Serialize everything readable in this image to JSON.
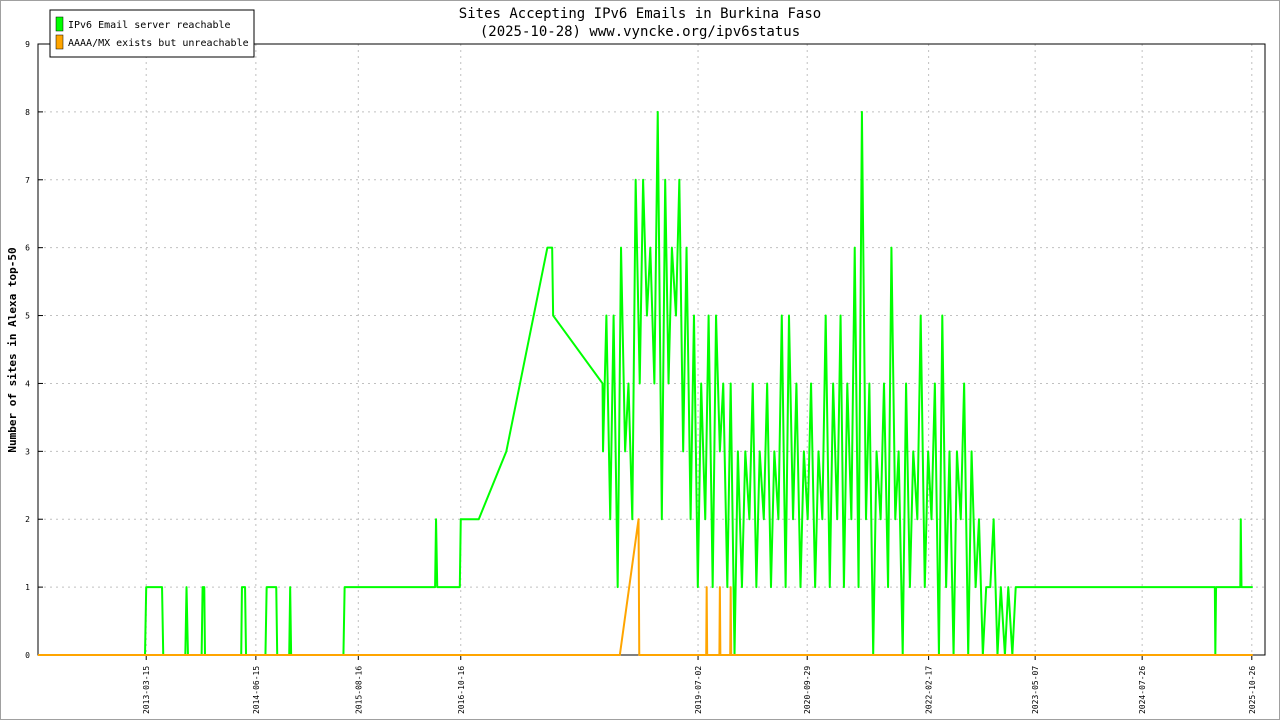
{
  "chart_data": {
    "type": "line",
    "title": "Sites Accepting IPv6 Emails in Burkina Faso",
    "subtitle": "(2025-10-28) www.vyncke.org/ipv6status",
    "y_label": "Number of sites in Alexa top-50",
    "xlim": [
      "2011-12-20",
      "2025-12-20"
    ],
    "xticks": [
      "2013-03-15",
      "2014-06-15",
      "2015-08-16",
      "2016-10-16",
      "2019-07-02",
      "2020-09-29",
      "2022-02-17",
      "2023-05-07",
      "2024-07-26",
      "2025-10-26"
    ],
    "ylim": [
      0,
      9
    ],
    "yticks": [
      0,
      1,
      2,
      3,
      4,
      5,
      6,
      7,
      8,
      9
    ],
    "grid": true,
    "legend": "top-left",
    "series": [
      {
        "name": "IPv6 Email server reachable",
        "color": "#00ff00",
        "x": [
          "2011-12-20",
          "2013-03-10",
          "2013-03-15",
          "2013-05-20",
          "2013-05-25",
          "2013-08-25",
          "2013-08-30",
          "2013-09-05",
          "2013-11-01",
          "2013-11-05",
          "2013-11-12",
          "2013-11-15",
          "2014-04-15",
          "2014-04-18",
          "2014-05-01",
          "2014-05-05",
          "2014-07-25",
          "2014-07-30",
          "2014-09-08",
          "2014-09-12",
          "2014-11-01",
          "2014-11-05",
          "2014-11-09",
          "2015-06-15",
          "2015-06-20",
          "2016-07-01",
          "2016-07-05",
          "2016-07-10",
          "2016-10-12",
          "2016-10-16",
          "2016-12-30",
          "2017-04-24",
          "2017-10-12",
          "2017-11-01",
          "2017-11-05",
          "2018-05-30",
          "2018-06-01",
          "2018-06-15",
          "2018-07-01",
          "2018-07-15",
          "2018-08-01",
          "2018-08-15",
          "2018-09-01",
          "2018-09-15",
          "2018-10-01",
          "2018-10-15",
          "2018-11-01",
          "2018-11-15",
          "2018-12-01",
          "2018-12-15",
          "2019-01-01",
          "2019-01-15",
          "2019-02-01",
          "2019-02-15",
          "2019-03-01",
          "2019-03-15",
          "2019-04-01",
          "2019-04-15",
          "2019-05-01",
          "2019-05-15",
          "2019-06-01",
          "2019-06-15",
          "2019-07-01",
          "2019-07-15",
          "2019-08-01",
          "2019-08-15",
          "2019-09-01",
          "2019-09-15",
          "2019-10-01",
          "2019-10-15",
          "2019-11-01",
          "2019-11-15",
          "2019-12-01",
          "2019-12-15",
          "2020-01-01",
          "2020-01-15",
          "2020-02-01",
          "2020-02-15",
          "2020-03-01",
          "2020-03-15",
          "2020-04-01",
          "2020-04-15",
          "2020-05-01",
          "2020-05-15",
          "2020-06-01",
          "2020-06-15",
          "2020-07-01",
          "2020-07-15",
          "2020-08-01",
          "2020-08-15",
          "2020-09-01",
          "2020-09-15",
          "2020-10-01",
          "2020-10-15",
          "2020-11-01",
          "2020-11-15",
          "2020-12-01",
          "2020-12-15",
          "2021-01-01",
          "2021-01-15",
          "2021-02-01",
          "2021-02-15",
          "2021-03-01",
          "2021-03-15",
          "2021-04-01",
          "2021-04-15",
          "2021-05-01",
          "2021-05-15",
          "2021-06-01",
          "2021-06-15",
          "2021-07-01",
          "2021-07-15",
          "2021-08-01",
          "2021-08-15",
          "2021-09-01",
          "2021-09-15",
          "2021-10-01",
          "2021-10-15",
          "2021-11-01",
          "2021-11-15",
          "2021-12-01",
          "2021-12-15",
          "2022-01-01",
          "2022-01-15",
          "2022-02-01",
          "2022-02-15",
          "2022-03-01",
          "2022-03-15",
          "2022-04-01",
          "2022-04-15",
          "2022-05-01",
          "2022-05-15",
          "2022-06-01",
          "2022-06-15",
          "2022-07-01",
          "2022-07-15",
          "2022-08-01",
          "2022-08-15",
          "2022-09-01",
          "2022-09-15",
          "2022-10-01",
          "2022-10-15",
          "2022-11-01",
          "2022-11-15",
          "2022-12-01",
          "2022-12-15",
          "2023-01-01",
          "2023-01-15",
          "2023-02-01",
          "2023-02-15",
          "2023-03-01",
          "2025-05-25",
          "2025-05-27",
          "2025-05-30",
          "2025-09-08",
          "2025-09-10",
          "2025-09-13",
          "2025-10-30"
        ],
        "values": [
          0,
          0,
          1,
          1,
          0,
          0,
          1,
          0,
          0,
          1,
          1,
          0,
          0,
          1,
          1,
          0,
          0,
          1,
          1,
          0,
          0,
          1,
          0,
          0,
          1,
          1,
          2,
          1,
          1,
          2,
          2,
          3,
          6,
          6,
          5,
          4,
          3,
          5,
          2,
          5,
          1,
          6,
          3,
          4,
          2,
          7,
          4,
          7,
          5,
          6,
          4,
          8,
          2,
          7,
          4,
          6,
          5,
          7,
          3,
          6,
          2,
          5,
          1,
          4,
          2,
          5,
          1,
          5,
          3,
          4,
          1,
          4,
          0,
          3,
          1,
          3,
          2,
          4,
          1,
          3,
          2,
          4,
          1,
          3,
          2,
          5,
          1,
          5,
          2,
          4,
          1,
          3,
          2,
          4,
          1,
          3,
          2,
          5,
          1,
          4,
          2,
          5,
          1,
          4,
          2,
          6,
          1,
          8,
          2,
          4,
          0,
          3,
          2,
          4,
          1,
          6,
          2,
          3,
          0,
          4,
          1,
          3,
          2,
          5,
          1,
          3,
          2,
          4,
          0,
          5,
          1,
          3,
          0,
          3,
          2,
          4,
          0,
          3,
          1,
          2,
          0,
          1,
          1,
          2,
          0,
          1,
          0,
          1,
          0,
          1,
          1,
          1,
          0,
          1,
          1,
          2,
          1,
          1
        ]
      },
      {
        "name": "AAAA/MX exists but unreachable",
        "color": "#ffa500",
        "x": [
          "2011-12-20",
          "2018-08-10",
          "2018-10-27",
          "2018-10-30",
          "2019-08-05",
          "2019-08-07",
          "2019-08-09",
          "2019-09-29",
          "2019-10-01",
          "2019-10-03",
          "2019-11-13",
          "2019-11-15",
          "2019-11-17",
          "2025-10-30"
        ],
        "values": [
          0,
          0,
          2,
          0,
          0,
          1,
          0,
          0,
          1,
          0,
          0,
          1,
          0,
          0
        ]
      }
    ]
  }
}
